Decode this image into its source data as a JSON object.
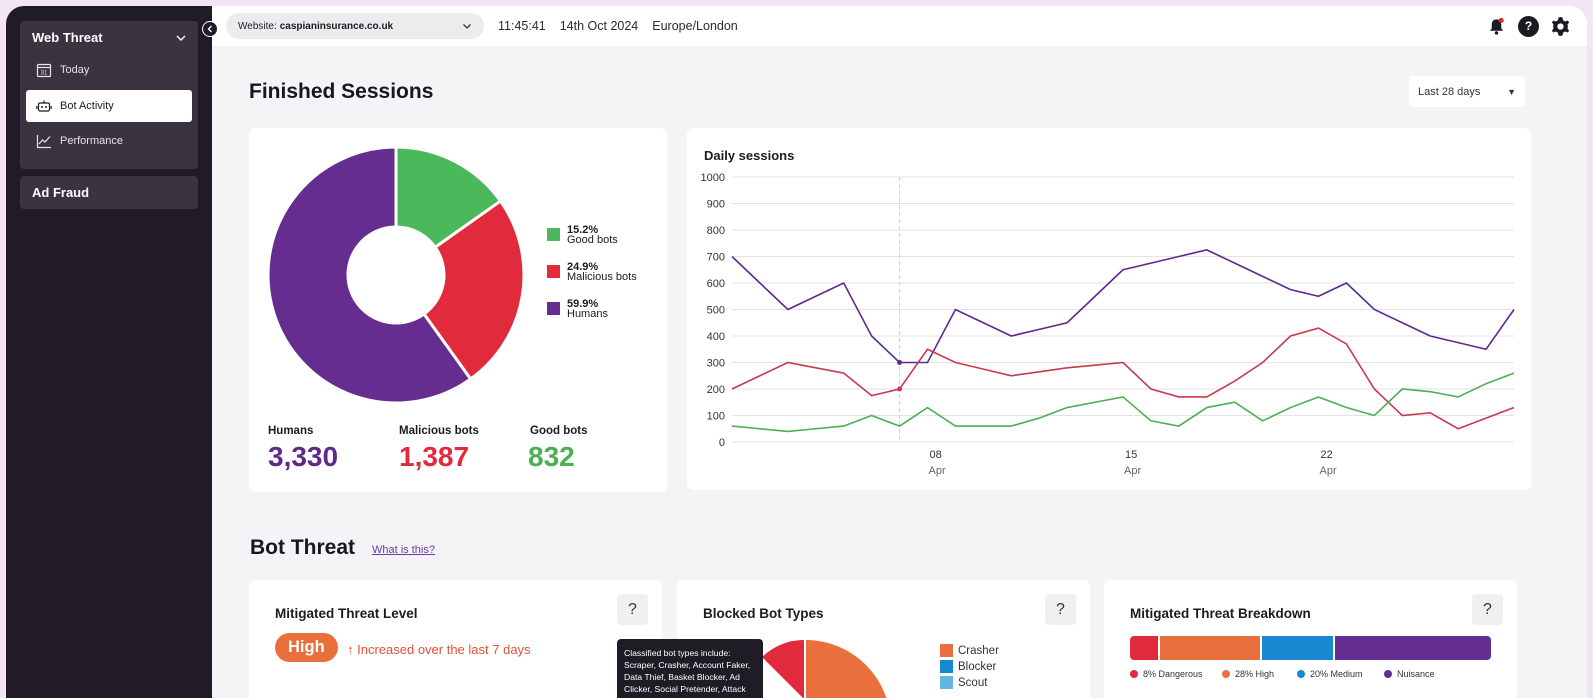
{
  "sidebar": {
    "groups": [
      {
        "label": "Web Threat"
      },
      {
        "label": "Ad Fraud"
      }
    ],
    "items": [
      {
        "label": "Today"
      },
      {
        "label": "Bot Activity"
      },
      {
        "label": "Performance"
      }
    ]
  },
  "topbar": {
    "website_prefix": "Website:",
    "website": "caspianinsurance.co.uk",
    "time": "11:45:41",
    "date": "14th Oct 2024",
    "timezone": "Europe/London"
  },
  "finished_sessions": {
    "title": "Finished Sessions",
    "range": "Last 28 days",
    "legend": [
      {
        "pct": "15.2%",
        "label": "Good bots",
        "color": "#4cb85c"
      },
      {
        "pct": "24.9%",
        "label": "Malicious bots",
        "color": "#e12a3c"
      },
      {
        "pct": "59.9%",
        "label": "Humans",
        "color": "#662d91"
      }
    ],
    "stats": [
      {
        "label": "Humans",
        "value": "3,330",
        "color": "#5d2a8c"
      },
      {
        "label": "Malicious bots",
        "value": "1,387",
        "color": "#e12a3c"
      },
      {
        "label": "Good bots",
        "value": "832",
        "color": "#4cb85c"
      }
    ]
  },
  "daily_sessions": {
    "title": "Daily sessions",
    "x_ticks": [
      {
        "day": "08",
        "month": "Apr"
      },
      {
        "day": "15",
        "month": "Apr"
      },
      {
        "day": "22",
        "month": "Apr"
      }
    ]
  },
  "chart_data": [
    {
      "type": "pie",
      "labels": [
        "Good bots",
        "Malicious bots",
        "Humans"
      ],
      "values": [
        15.2,
        24.9,
        59.9
      ],
      "colors": [
        "#4cb85c",
        "#e12a3c",
        "#662d91"
      ]
    },
    {
      "type": "line",
      "title": "Daily sessions",
      "ylim": [
        0,
        1000
      ],
      "yticks": [
        0,
        100,
        200,
        300,
        400,
        500,
        600,
        700,
        800,
        900,
        1000
      ],
      "x": [
        "Apr 2",
        "Apr 3",
        "Apr 4",
        "Apr 5",
        "Apr 6",
        "Apr 7",
        "Apr 8",
        "Apr 9",
        "Apr 10",
        "Apr 11",
        "Apr 12",
        "Apr 13",
        "Apr 14",
        "Apr 15",
        "Apr 16",
        "Apr 17",
        "Apr 18",
        "Apr 19",
        "Apr 20",
        "Apr 21",
        "Apr 22",
        "Apr 23",
        "Apr 24",
        "Apr 25",
        "Apr 26",
        "Apr 27",
        "Apr 28",
        "Apr 29",
        "Apr 30"
      ],
      "grid": true,
      "series": [
        {
          "color": "#5d2a8c",
          "values": [
            700,
            600,
            500,
            550,
            600,
            400,
            300,
            300,
            500,
            450,
            400,
            425,
            450,
            550,
            650,
            675,
            700,
            725,
            675,
            625,
            575,
            550,
            600,
            500,
            450,
            400,
            375,
            350,
            500
          ]
        },
        {
          "color": "#c73a4e",
          "values": [
            200,
            250,
            300,
            280,
            260,
            175,
            200,
            350,
            300,
            275,
            250,
            265,
            280,
            290,
            300,
            200,
            170,
            170,
            230,
            300,
            400,
            430,
            370,
            200,
            100,
            110,
            50,
            90,
            130
          ]
        },
        {
          "color": "#4caf50",
          "values": [
            60,
            50,
            40,
            50,
            60,
            100,
            60,
            130,
            60,
            60,
            60,
            90,
            130,
            150,
            170,
            80,
            60,
            130,
            150,
            80,
            130,
            170,
            130,
            100,
            200,
            190,
            170,
            220,
            260
          ]
        }
      ]
    }
  ],
  "bot_threat": {
    "title": "Bot Threat",
    "link": "What is this?",
    "cards": {
      "mitigated": {
        "title": "Mitigated Threat Level",
        "level": "High",
        "trend": "↑ Increased over the last 7 days"
      },
      "blocked": {
        "title": "Blocked Bot Types",
        "legend": [
          {
            "label": "Crasher",
            "color": "#e9703c"
          },
          {
            "label": "Blocker",
            "color": "#1889d1"
          },
          {
            "label": "Scout",
            "color": "#62b7e0"
          }
        ],
        "tooltip": "Classified bot types include: Scraper, Crasher, Account Faker, Data Thief, Basket Blocker, Ad Clicker, Social Pretender, Attack"
      },
      "breakdown": {
        "title": "Mitigated Threat Breakdown",
        "segments": [
          {
            "label": "8% Dangerous",
            "value": 8,
            "color": "#e12a3c"
          },
          {
            "label": "28% High",
            "value": 28,
            "color": "#e9703c"
          },
          {
            "label": "20% Medium",
            "value": 20,
            "color": "#1889d1"
          },
          {
            "label": "Nuisance",
            "value": 44,
            "color": "#662d91"
          }
        ]
      }
    }
  }
}
